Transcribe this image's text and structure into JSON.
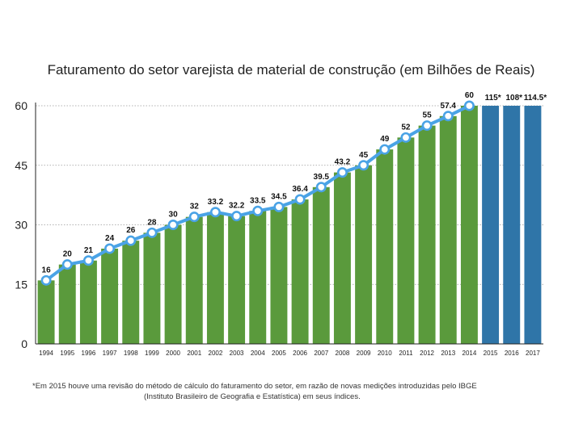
{
  "chart_data": {
    "type": "bar",
    "title": "Faturamento do setor varejista de material de construção (em Bilhões de Reais)",
    "categories": [
      "1994",
      "1995",
      "1996",
      "1997",
      "1998",
      "1999",
      "2000",
      "2001",
      "2002",
      "2003",
      "2004",
      "2005",
      "2006",
      "2007",
      "2008",
      "2009",
      "2010",
      "2011",
      "2012",
      "2013",
      "2014",
      "2015",
      "2016",
      "2017"
    ],
    "yticks": [
      "0",
      "15",
      "30",
      "45",
      "60"
    ],
    "ylim": [
      0,
      60
    ],
    "grid": true,
    "colors": {
      "bar": "#5a9a3c",
      "bar_revised": "#2f75a8",
      "line": "#4aa3e6"
    },
    "series": [
      {
        "values": [
          16,
          20,
          21,
          24,
          26,
          28,
          30,
          32,
          33.2,
          32.2,
          33.5,
          34.5,
          36.4,
          39.5,
          43.2,
          45,
          49,
          52,
          55,
          57.4,
          60,
          null,
          null,
          null
        ],
        "labels": [
          "16",
          "20",
          "21",
          "24",
          "26",
          "28",
          "30",
          "32",
          "33.2",
          "32.2",
          "33.5",
          "34.5",
          "36.4",
          "39.5",
          "43.2",
          "45",
          "49",
          "52",
          "55",
          "57.4",
          "60",
          "",
          "",
          ""
        ]
      },
      {
        "values": [
          null,
          null,
          null,
          null,
          null,
          null,
          null,
          null,
          null,
          null,
          null,
          null,
          null,
          null,
          null,
          null,
          null,
          null,
          null,
          null,
          null,
          115,
          108,
          114.5
        ],
        "labels": [
          "",
          "",
          "",
          "",
          "",
          "",
          "",
          "",
          "",
          "",
          "",
          "",
          "",
          "",
          "",
          "",
          "",
          "",
          "",
          "",
          "",
          "115*",
          "108*",
          "114.5*"
        ]
      }
    ]
  },
  "footnote": {
    "line1": "*Em 2015 houve uma revisão do método de cálculo do faturamento do setor, em razão de novas medições introduzidas pelo IBGE",
    "line2": "(Instituto Brasileiro de Geografia e Estatística) em seus índices."
  }
}
